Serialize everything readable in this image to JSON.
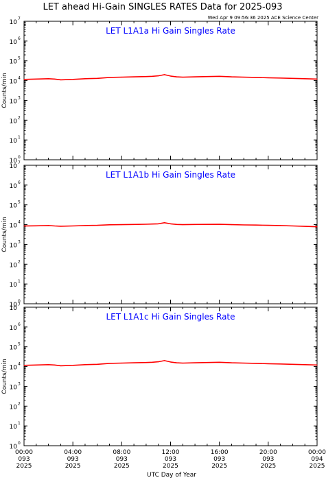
{
  "title": "LET ahead Hi-Gain SINGLES RATES Data for 2025-093",
  "timestamp": "Wed Apr  9 09:56:36 2025 ACE Science Center",
  "xlabel": "UTC Day of Year",
  "colors": {
    "series": "#ff0000",
    "panel_title": "#0000ff",
    "axes": "#000000"
  },
  "chart_data": [
    {
      "type": "line",
      "title": "LET L1A1a Hi Gain Singles Rate",
      "ylabel": "Counts/min",
      "yscale": "log",
      "ylim": [
        1,
        10000000
      ],
      "xlim": [
        0,
        24
      ],
      "x_ticks": [
        "00:00 093 2025",
        "04:00 093 2025",
        "08:00 093 2025",
        "12:00 093 2025",
        "16:00 093 2025",
        "20:00 093 2025",
        "00:00 094 2025"
      ],
      "series": [
        {
          "x": [
            0,
            1,
            2,
            2.5,
            3,
            4,
            5,
            6,
            7,
            8,
            9,
            10,
            10.5,
            11,
            11.5,
            12,
            12.5,
            13,
            14,
            15,
            16,
            17,
            18,
            19,
            20,
            21,
            22,
            23,
            24
          ],
          "values": [
            11500,
            12000,
            12500,
            12000,
            11000,
            11500,
            12500,
            13000,
            14500,
            15000,
            15500,
            16000,
            16500,
            17500,
            20000,
            17000,
            15500,
            15000,
            15500,
            16000,
            16500,
            15500,
            15000,
            14500,
            14000,
            13500,
            13000,
            12500,
            12000
          ]
        }
      ]
    },
    {
      "type": "line",
      "title": "LET L1A1b Hi Gain Singles Rate",
      "ylabel": "Counts/min",
      "yscale": "log",
      "ylim": [
        1,
        10000000
      ],
      "xlim": [
        0,
        24
      ],
      "x_ticks": [
        "00:00 093 2025",
        "04:00 093 2025",
        "08:00 093 2025",
        "12:00 093 2025",
        "16:00 093 2025",
        "20:00 093 2025",
        "00:00 094 2025"
      ],
      "series": [
        {
          "x": [
            0,
            1,
            2,
            2.5,
            3,
            4,
            5,
            6,
            7,
            8,
            9,
            10,
            10.5,
            11,
            11.5,
            12,
            12.5,
            13,
            14,
            15,
            16,
            17,
            18,
            19,
            20,
            21,
            22,
            23,
            24
          ],
          "values": [
            8500,
            8700,
            9000,
            8600,
            8300,
            8600,
            9000,
            9200,
            9800,
            10000,
            10200,
            10500,
            10700,
            11000,
            12500,
            11000,
            10200,
            10000,
            10200,
            10300,
            10400,
            10000,
            9700,
            9500,
            9200,
            9000,
            8600,
            8200,
            7800
          ]
        }
      ]
    },
    {
      "type": "line",
      "title": "LET L1A1c Hi Gain Singles Rate",
      "ylabel": "Counts/min",
      "yscale": "log",
      "ylim": [
        1,
        10000000
      ],
      "xlim": [
        0,
        24
      ],
      "x_ticks": [
        "00:00 093 2025",
        "04:00 093 2025",
        "08:00 093 2025",
        "12:00 093 2025",
        "16:00 093 2025",
        "20:00 093 2025",
        "00:00 094 2025"
      ],
      "series": [
        {
          "x": [
            0,
            1,
            2,
            2.5,
            3,
            4,
            5,
            6,
            7,
            8,
            9,
            10,
            10.5,
            11,
            11.5,
            12,
            12.5,
            13,
            14,
            15,
            16,
            17,
            18,
            19,
            20,
            21,
            22,
            23,
            24
          ],
          "values": [
            11500,
            12000,
            12500,
            12000,
            11000,
            11500,
            12500,
            13000,
            14500,
            15000,
            15500,
            16000,
            16500,
            17500,
            20000,
            17000,
            15500,
            15000,
            15500,
            16000,
            16500,
            15500,
            15000,
            14500,
            14000,
            13500,
            13000,
            12500,
            12000
          ]
        }
      ]
    }
  ]
}
